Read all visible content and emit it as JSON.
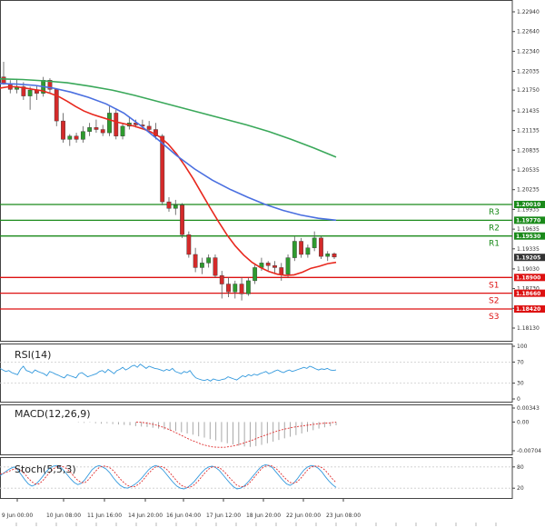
{
  "chart_data": {
    "type": "candlestick",
    "main": {
      "y_ticks": [
        "1.22940",
        "1.22640",
        "1.22340",
        "1.22035",
        "1.21750",
        "1.21435",
        "1.21135",
        "1.20835",
        "1.20535",
        "1.20235",
        "1.19935",
        "1.19635",
        "1.19335",
        "1.19030",
        "1.18730",
        "1.18430",
        "1.18130"
      ],
      "price_tags": [
        "1.20010",
        "1.19770",
        "1.19530",
        "1.19205",
        "1.18900",
        "1.18660",
        "1.18420"
      ],
      "pivot_levels": [
        {
          "label": "R3",
          "value": 1.2001,
          "tag": "1.20010",
          "color": "#1a8a1a"
        },
        {
          "label": "R2",
          "value": 1.1977,
          "tag": "1.19770",
          "color": "#1a8a1a"
        },
        {
          "label": "R1",
          "value": 1.1953,
          "tag": "1.19530",
          "color": "#1a8a1a"
        },
        {
          "label": "S1",
          "value": 1.189,
          "tag": "1.18900",
          "color": "#dd1111"
        },
        {
          "label": "S2",
          "value": 1.1866,
          "tag": "1.18660",
          "color": "#dd1111"
        },
        {
          "label": "S3",
          "value": 1.1842,
          "tag": "1.18420",
          "color": "#dd1111"
        }
      ],
      "current_price": "1.19205",
      "candles": [
        [
          1.2195,
          1.2218,
          1.2183,
          1.2185
        ],
        [
          1.2185,
          1.219,
          1.217,
          1.2176
        ],
        [
          1.2176,
          1.2192,
          1.217,
          1.218
        ],
        [
          1.218,
          1.2187,
          1.216,
          1.2166
        ],
        [
          1.2166,
          1.218,
          1.2145,
          1.2175
        ],
        [
          1.2175,
          1.2182,
          1.216,
          1.217
        ],
        [
          1.217,
          1.2195,
          1.2165,
          1.219
        ],
        [
          1.219,
          1.2193,
          1.217,
          1.2176
        ],
        [
          1.2176,
          1.2178,
          1.212,
          1.2128
        ],
        [
          1.2128,
          1.214,
          1.2095,
          1.21
        ],
        [
          1.21,
          1.2108,
          1.209,
          1.2105
        ],
        [
          1.2105,
          1.211,
          1.2095,
          1.21
        ],
        [
          1.21,
          1.212,
          1.2095,
          1.2112
        ],
        [
          1.2112,
          1.2125,
          1.2105,
          1.2118
        ],
        [
          1.2118,
          1.213,
          1.211,
          1.2115
        ],
        [
          1.2115,
          1.2122,
          1.2105,
          1.211
        ],
        [
          1.211,
          1.215,
          1.2105,
          1.214
        ],
        [
          1.214,
          1.2145,
          1.21,
          1.2105
        ],
        [
          1.2105,
          1.2125,
          1.21,
          1.212
        ],
        [
          1.212,
          1.2135,
          1.2115,
          1.2125
        ],
        [
          1.2125,
          1.213,
          1.2118,
          1.2122
        ],
        [
          1.2122,
          1.213,
          1.2115,
          1.212
        ],
        [
          1.212,
          1.2128,
          1.211,
          1.2115
        ],
        [
          1.2115,
          1.2125,
          1.21,
          1.2105
        ],
        [
          1.2105,
          1.2108,
          1.2,
          1.2005
        ],
        [
          1.2005,
          1.2012,
          1.199,
          1.1995
        ],
        [
          1.1995,
          1.2008,
          1.1985,
          1.2
        ],
        [
          1.2,
          1.2003,
          1.195,
          1.1955
        ],
        [
          1.1955,
          1.196,
          1.192,
          1.1925
        ],
        [
          1.1925,
          1.1935,
          1.1898,
          1.1905
        ],
        [
          1.1905,
          1.192,
          1.1895,
          1.1912
        ],
        [
          1.1912,
          1.1925,
          1.1905,
          1.192
        ],
        [
          1.192,
          1.1925,
          1.189,
          1.1893
        ],
        [
          1.1893,
          1.19,
          1.1858,
          1.188
        ],
        [
          1.188,
          1.189,
          1.186,
          1.1868
        ],
        [
          1.1868,
          1.1885,
          1.1858,
          1.188
        ],
        [
          1.188,
          1.189,
          1.1855,
          1.1865
        ],
        [
          1.1865,
          1.189,
          1.1862,
          1.1885
        ],
        [
          1.1885,
          1.191,
          1.188,
          1.1905
        ],
        [
          1.1905,
          1.192,
          1.19,
          1.1912
        ],
        [
          1.1912,
          1.1915,
          1.19,
          1.1908
        ],
        [
          1.1908,
          1.1915,
          1.1895,
          1.1905
        ],
        [
          1.1905,
          1.1912,
          1.1885,
          1.1895
        ],
        [
          1.1895,
          1.1925,
          1.189,
          1.192
        ],
        [
          1.192,
          1.1952,
          1.1915,
          1.1945
        ],
        [
          1.1945,
          1.195,
          1.192,
          1.1925
        ],
        [
          1.1925,
          1.194,
          1.192,
          1.1935
        ],
        [
          1.1935,
          1.196,
          1.193,
          1.195
        ],
        [
          1.195,
          1.1953,
          1.1918,
          1.1922
        ],
        [
          1.1922,
          1.193,
          1.1915,
          1.1926
        ],
        [
          1.1926,
          1.1928,
          1.1918,
          1.1921
        ]
      ],
      "ma_short": [
        1.2178,
        1.218,
        1.218,
        1.2178,
        1.2176,
        1.2174,
        1.217,
        1.2165,
        1.2158,
        1.215,
        1.2143,
        1.2138,
        1.2134,
        1.213,
        1.2126,
        1.2123,
        1.212,
        1.2116,
        1.2111,
        1.2104,
        1.2093,
        1.2078,
        1.206,
        1.204,
        1.2018,
        1.1996,
        1.1975,
        1.1955,
        1.1938,
        1.1924,
        1.1913,
        1.1905,
        1.1899,
        1.1895,
        1.1893,
        1.1894,
        1.1898,
        1.1904,
        1.1907,
        1.1911,
        1.1913
      ],
      "ma_short_start": 0,
      "ma_short_step": 1.25,
      "ma_mid": [
        1.2185,
        1.2184,
        1.2182,
        1.2178,
        1.2172,
        1.2164,
        1.2154,
        1.214,
        1.212,
        1.2098,
        1.2075,
        1.2055,
        1.2038,
        1.2024,
        1.2012,
        1.2001,
        1.1992,
        1.1985,
        1.198,
        1.1977
      ],
      "ma_mid_step": 2.65,
      "ma_long": [
        1.2192,
        1.2191,
        1.2189,
        1.2186,
        1.2181,
        1.2175,
        1.2167,
        1.2158,
        1.2149,
        1.214,
        1.2131,
        1.2122,
        1.2112,
        1.21,
        1.2087,
        1.2073
      ],
      "ma_long_step": 3.3
    },
    "rsi": {
      "label": "RSI(14)",
      "y_ticks": [
        "100",
        "70",
        "30",
        "0"
      ],
      "values": [
        58,
        55,
        52,
        54,
        50,
        48,
        46,
        56,
        62,
        54,
        52,
        49,
        55,
        52,
        50,
        48,
        44,
        52,
        50,
        47,
        45,
        42,
        40,
        46,
        44,
        42,
        40,
        48,
        50,
        46,
        42,
        44,
        46,
        48,
        52,
        54,
        50,
        56,
        52,
        48,
        54,
        56,
        60,
        55,
        58,
        62,
        64,
        60,
        66,
        62,
        58,
        62,
        60,
        58,
        57,
        55,
        53,
        56,
        54,
        58,
        52,
        50,
        48,
        52,
        50,
        54,
        46,
        40,
        38,
        36,
        35,
        37,
        34,
        38,
        36,
        35,
        37,
        38,
        42,
        40,
        38,
        36,
        40,
        44,
        42,
        46,
        44,
        47,
        45,
        48,
        50,
        52,
        48,
        50,
        53,
        55,
        52,
        50,
        53,
        55,
        52,
        54,
        56,
        58,
        60,
        58,
        62,
        60,
        57,
        55,
        57,
        56,
        58,
        55,
        54,
        55
      ]
    },
    "macd": {
      "label": "MACD(12,26,9)",
      "y_ticks": [
        "0.00343",
        "0.00",
        "-0.00704"
      ],
      "hist": [
        0.0,
        -0.0001,
        -0.0002,
        -0.0001,
        -0.0003,
        -0.0004,
        -0.0003,
        -0.0005,
        -0.0006,
        -0.0007,
        -0.0008,
        -0.001,
        -0.0011,
        -0.0012,
        -0.0014,
        -0.0016,
        -0.0018,
        -0.002,
        -0.0022,
        -0.0025,
        -0.0028,
        -0.0031,
        -0.0035,
        -0.0038,
        -0.0042,
        -0.0045,
        -0.0049,
        -0.0052,
        -0.0055,
        -0.0058,
        -0.006,
        -0.0061,
        -0.0059,
        -0.0056,
        -0.0052,
        -0.0048,
        -0.0044,
        -0.004,
        -0.0036,
        -0.0032,
        -0.0028,
        -0.0024,
        -0.002,
        -0.0016,
        -0.0013,
        -0.001,
        -0.0008
      ],
      "signal": [
        0.0,
        -0.0001,
        -0.0003,
        -0.0006,
        -0.001,
        -0.0015,
        -0.0021,
        -0.0028,
        -0.0035,
        -0.0042,
        -0.0048,
        -0.0054,
        -0.0058,
        -0.0061,
        -0.0062,
        -0.0062,
        -0.006,
        -0.0057,
        -0.0053,
        -0.0048,
        -0.0043,
        -0.0037,
        -0.0032,
        -0.0027,
        -0.0022,
        -0.0018,
        -0.0015,
        -0.0012,
        -0.001,
        -0.0008,
        -0.0006,
        -0.0004,
        -0.0003,
        -0.0002,
        0.0
      ]
    },
    "stoch": {
      "label": "Stoch(5,5,3)",
      "y_ticks": [
        "80",
        "20"
      ],
      "k": [
        55,
        62,
        70,
        76,
        80,
        72,
        58,
        44,
        32,
        26,
        30,
        40,
        52,
        66,
        76,
        82,
        84,
        80,
        70,
        58,
        46,
        36,
        30,
        34,
        44,
        58,
        72,
        80,
        84,
        80,
        74,
        64,
        50,
        38,
        28,
        22,
        20,
        24,
        30,
        38,
        48,
        60,
        72,
        80,
        84,
        80,
        72,
        60,
        48,
        36,
        26,
        20,
        18,
        22,
        30,
        40,
        52,
        64,
        74,
        80,
        82,
        78,
        70,
        58,
        46,
        34,
        24,
        18,
        20,
        26,
        36,
        48,
        60,
        72,
        82,
        86,
        84,
        78,
        66,
        54,
        42,
        32,
        28,
        34,
        46,
        60,
        72,
        80,
        84,
        82,
        76,
        66,
        52,
        40,
        30,
        22
      ],
      "d": [
        60,
        62,
        66,
        70,
        74,
        75,
        70,
        60,
        48,
        38,
        32,
        32,
        40,
        52,
        64,
        74,
        80,
        82,
        80,
        74,
        64,
        52,
        42,
        36,
        36,
        44,
        56,
        68,
        78,
        82,
        82,
        78,
        70,
        58,
        46,
        36,
        28,
        24,
        24,
        30,
        38,
        50,
        62,
        72,
        80,
        82,
        80,
        74,
        64,
        52,
        40,
        30,
        24,
        22,
        24,
        30,
        40,
        52,
        64,
        74,
        80,
        80,
        78,
        70,
        60,
        48,
        38,
        28,
        24,
        24,
        30,
        40,
        52,
        64,
        76,
        82,
        84,
        82,
        76,
        66,
        54,
        44,
        36,
        34,
        38,
        48,
        60,
        72,
        80,
        82,
        82,
        78,
        70,
        58,
        46,
        36
      ]
    },
    "x_ticks": [
      "9 Jun 00:00",
      "10 Jun 08:00",
      "11 Jun 16:00",
      "14 Jun 20:00",
      "16 Jun 04:00",
      "17 Jun 12:00",
      "18 Jun 20:00",
      "22 Jun 00:00",
      "23 Jun 08:00"
    ]
  },
  "colors": {
    "bull": "#2e9b2e",
    "bear": "#d42a2a",
    "wick": "#555555",
    "ma_short": "#e8281e",
    "ma_mid": "#4a6fe0",
    "ma_long": "#3aa85a",
    "rsi": "#3399dd",
    "macd_hist": "#a8a8a8",
    "macd_signal": "#e03030",
    "stoch_k": "#3399dd",
    "stoch_d": "#e03030",
    "grid": "#cccccc",
    "price_tag_bg": "#333333"
  }
}
